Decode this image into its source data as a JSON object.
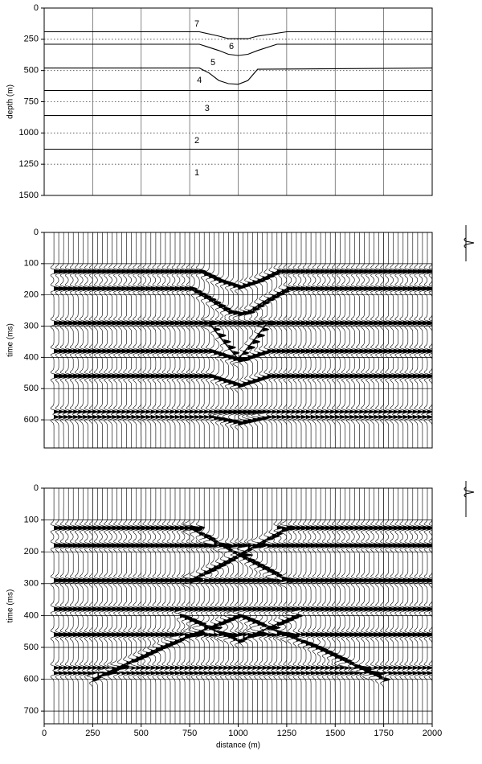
{
  "chart_data": [
    {
      "type": "model",
      "ylabel": "depth (m)",
      "xlim": [
        0,
        2000
      ],
      "ylim": [
        0,
        1500
      ],
      "xticks": [
        0,
        250,
        500,
        750,
        1000,
        1250,
        1500,
        1750,
        2000
      ],
      "show_xtick_labels": false,
      "yticks": [
        0,
        250,
        500,
        750,
        1000,
        1250,
        1500
      ],
      "grid": true,
      "grid_style": "dotted",
      "color": "#000000",
      "series": [
        {
          "x": [
            0,
            800,
            900,
            950,
            1000,
            1050,
            1100,
            1250,
            2000
          ],
          "values": [
            190,
            190,
            225,
            245,
            245,
            245,
            225,
            190,
            190
          ]
        },
        {
          "x": [
            0,
            800,
            900,
            950,
            1000,
            1050,
            1100,
            1200,
            2000
          ],
          "values": [
            290,
            290,
            340,
            370,
            380,
            370,
            340,
            290,
            290
          ]
        },
        {
          "x": [
            0,
            800,
            850,
            900,
            950,
            1000,
            1050,
            1100,
            2000
          ],
          "values": [
            480,
            480,
            520,
            580,
            605,
            610,
            580,
            490,
            480
          ]
        },
        {
          "x": [
            0,
            2000
          ],
          "values": [
            660,
            660
          ]
        },
        {
          "x": [
            0,
            2000
          ],
          "values": [
            860,
            860
          ]
        },
        {
          "x": [
            0,
            2000
          ],
          "values": [
            1130,
            1130
          ]
        }
      ],
      "annotations": [
        {
          "text": "7",
          "x": 787,
          "y": 129
        },
        {
          "text": "6",
          "x": 965,
          "y": 309
        },
        {
          "text": "5",
          "x": 870,
          "y": 438
        },
        {
          "text": "4",
          "x": 800,
          "y": 579
        },
        {
          "text": "3",
          "x": 840,
          "y": 805
        },
        {
          "text": "2",
          "x": 787,
          "y": 1062
        },
        {
          "text": "1",
          "x": 787,
          "y": 1320
        }
      ]
    },
    {
      "type": "wiggle",
      "ylabel": "time (ms)",
      "xlim": [
        0,
        2000
      ],
      "ylim": [
        0,
        690
      ],
      "xticks": [
        0,
        250,
        500,
        750,
        1000,
        1250,
        1500,
        1750,
        2000
      ],
      "show_xtick_labels": false,
      "yticks": [
        0,
        100,
        200,
        300,
        400,
        500,
        600
      ],
      "grid": true,
      "grid_style": "solid",
      "color": "#000000",
      "series": [
        {
          "x": [
            50,
            800,
            900,
            1000,
            1100,
            1200,
            2000
          ],
          "values": [
            125,
            125,
            155,
            175,
            155,
            125,
            125
          ]
        },
        {
          "x": [
            50,
            750,
            850,
            950,
            1000,
            1050,
            1150,
            1250,
            2000
          ],
          "values": [
            180,
            180,
            215,
            255,
            260,
            255,
            215,
            180,
            180
          ]
        },
        {
          "x": [
            50,
            2000
          ],
          "values": [
            290,
            290
          ]
        },
        {
          "x": [
            850,
            925,
            1000,
            1075,
            1150
          ],
          "values": [
            290,
            350,
            405,
            350,
            290
          ]
        },
        {
          "x": [
            50,
            850,
            1000,
            1150,
            2000
          ],
          "values": [
            380,
            380,
            410,
            380,
            380
          ]
        },
        {
          "x": [
            50,
            850,
            1000,
            1150,
            2000
          ],
          "values": [
            460,
            460,
            490,
            460,
            460
          ]
        },
        {
          "x": [
            50,
            2000
          ],
          "values": [
            575,
            575
          ]
        },
        {
          "x": [
            50,
            850,
            1000,
            1150,
            2000
          ],
          "values": [
            590,
            590,
            610,
            590,
            590
          ]
        }
      ]
    },
    {
      "type": "wiggle",
      "ylabel": "time (ms)",
      "xlabel": "distance (m)",
      "xlim": [
        0,
        2000
      ],
      "ylim": [
        0,
        740
      ],
      "xticks": [
        0,
        250,
        500,
        750,
        1000,
        1250,
        1500,
        1750,
        2000
      ],
      "show_xtick_labels": true,
      "yticks": [
        0,
        100,
        200,
        300,
        400,
        500,
        600,
        700
      ],
      "grid": true,
      "grid_style": "solid",
      "color": "#000000",
      "series": [
        {
          "x": [
            50,
            800
          ],
          "values": [
            125,
            125
          ]
        },
        {
          "x": [
            1200,
            2000
          ],
          "values": [
            125,
            125
          ]
        },
        {
          "x": [
            750,
            1000,
            1250
          ],
          "values": [
            125,
            210,
            290
          ]
        },
        {
          "x": [
            750,
            1000,
            1250
          ],
          "values": [
            290,
            210,
            125
          ]
        },
        {
          "x": [
            50,
            2000
          ],
          "values": [
            180,
            180
          ]
        },
        {
          "x": [
            50,
            2000
          ],
          "values": [
            290,
            290
          ]
        },
        {
          "x": [
            50,
            2000
          ],
          "values": [
            380,
            380
          ]
        },
        {
          "x": [
            250,
            600,
            1000,
            1400,
            1750
          ],
          "values": [
            600,
            500,
            400,
            500,
            600
          ]
        },
        {
          "x": [
            700,
            1000,
            1300
          ],
          "values": [
            400,
            480,
            400
          ]
        },
        {
          "x": [
            50,
            2000
          ],
          "values": [
            460,
            460
          ]
        },
        {
          "x": [
            50,
            2000
          ],
          "values": [
            565,
            565
          ]
        },
        {
          "x": [
            50,
            2000
          ],
          "values": [
            580,
            580
          ]
        }
      ]
    }
  ]
}
